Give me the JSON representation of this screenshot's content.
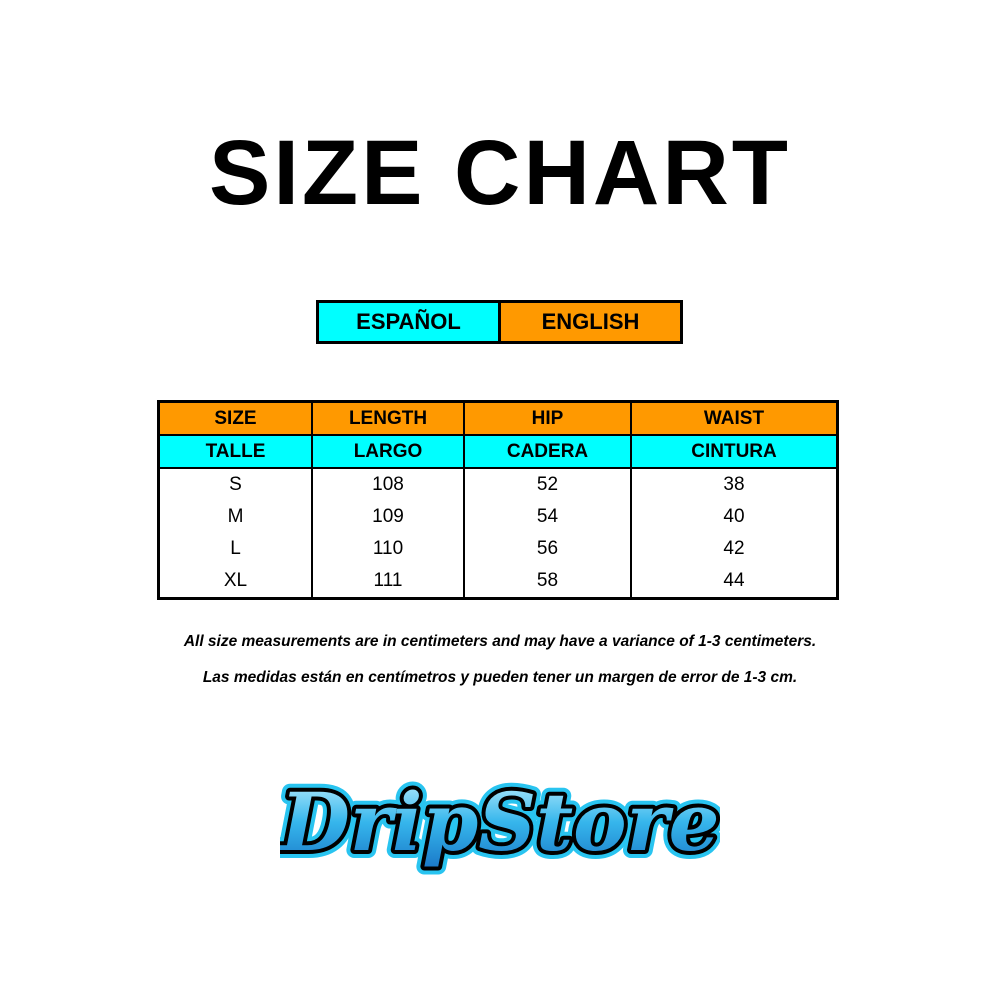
{
  "title": "SIZE CHART",
  "languages": {
    "spanish": "ESPAÑOL",
    "english": "ENGLISH",
    "spanish_color": "#00ffff",
    "english_color": "#ff9900"
  },
  "table": {
    "headers_en": [
      "SIZE",
      "LENGTH",
      "HIP",
      "WAIST"
    ],
    "headers_es": [
      "TALLE",
      "LARGO",
      "CADERA",
      "CINTURA"
    ],
    "rows": [
      [
        "S",
        "108",
        "52",
        "38"
      ],
      [
        "M",
        "109",
        "54",
        "40"
      ],
      [
        "L",
        "110",
        "56",
        "42"
      ],
      [
        "XL",
        "111",
        "58",
        "44"
      ]
    ]
  },
  "notes": {
    "english": "All size measurements are in centimeters and may have a variance of 1-3 centimeters.",
    "spanish": "Las medidas están en centímetros y pueden tener un margen de error de 1-3 cm."
  },
  "logo": {
    "text": "DripStore"
  }
}
